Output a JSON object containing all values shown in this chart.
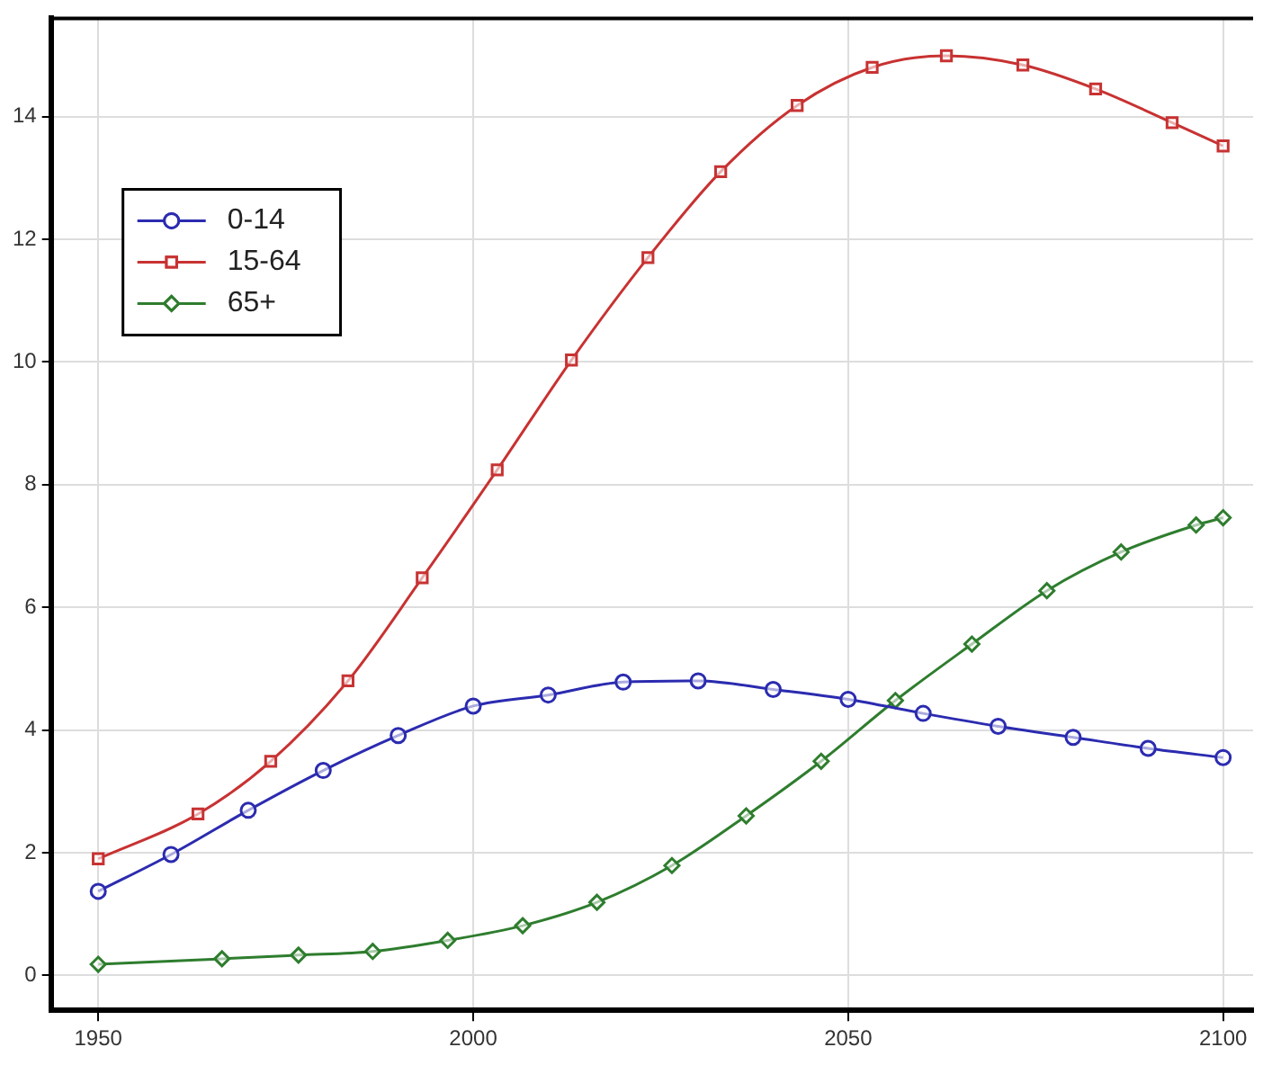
{
  "chart_data": {
    "type": "line",
    "xlim": [
      1943.7,
      2104
    ],
    "xticks": [
      1950,
      2000,
      2050,
      2100
    ],
    "ylim": [
      -0.57,
      15.6
    ],
    "yticks": [
      0,
      2,
      4,
      6,
      8,
      10,
      12,
      14
    ],
    "grid": true,
    "legend": "top left",
    "line_style": "solid",
    "series": [
      {
        "name": "0-14",
        "color": "#2b2bb0",
        "marker": "circle",
        "x": [
          1950,
          1959.7,
          1970,
          1980,
          1990,
          2000,
          2010,
          2020,
          2030,
          2040,
          2050,
          2060,
          2070,
          2080,
          2090,
          2100
        ],
        "values": [
          1.37,
          1.97,
          2.69,
          3.34,
          3.91,
          4.39,
          4.57,
          4.78,
          4.8,
          4.66,
          4.5,
          4.27,
          4.06,
          3.88,
          3.7,
          3.55
        ]
      },
      {
        "name": "15-64",
        "color": "#c83232",
        "marker": "square",
        "x": [
          1950,
          1963.3,
          1973,
          1983.3,
          1993.2,
          2003.2,
          2013.1,
          2023.3,
          2033,
          2043.2,
          2053.2,
          2063.1,
          2073.3,
          2083,
          2093.2,
          2100
        ],
        "values": [
          1.9,
          2.63,
          3.49,
          4.8,
          6.48,
          8.24,
          10.03,
          11.7,
          13.1,
          14.18,
          14.8,
          14.99,
          14.84,
          14.45,
          13.9,
          13.52
        ]
      },
      {
        "name": "65+",
        "color": "#2e7d2e",
        "marker": "diamond",
        "x": [
          1950,
          1966.5,
          1976.7,
          1986.6,
          1996.6,
          2006.6,
          2016.5,
          2026.5,
          2036.4,
          2046.4,
          2056.3,
          2066.5,
          2076.5,
          2086.4,
          2096.4,
          2100
        ],
        "values": [
          0.18,
          0.27,
          0.33,
          0.39,
          0.57,
          0.81,
          1.19,
          1.79,
          2.6,
          3.49,
          4.48,
          5.4,
          6.27,
          6.9,
          7.34,
          7.46
        ]
      }
    ]
  }
}
